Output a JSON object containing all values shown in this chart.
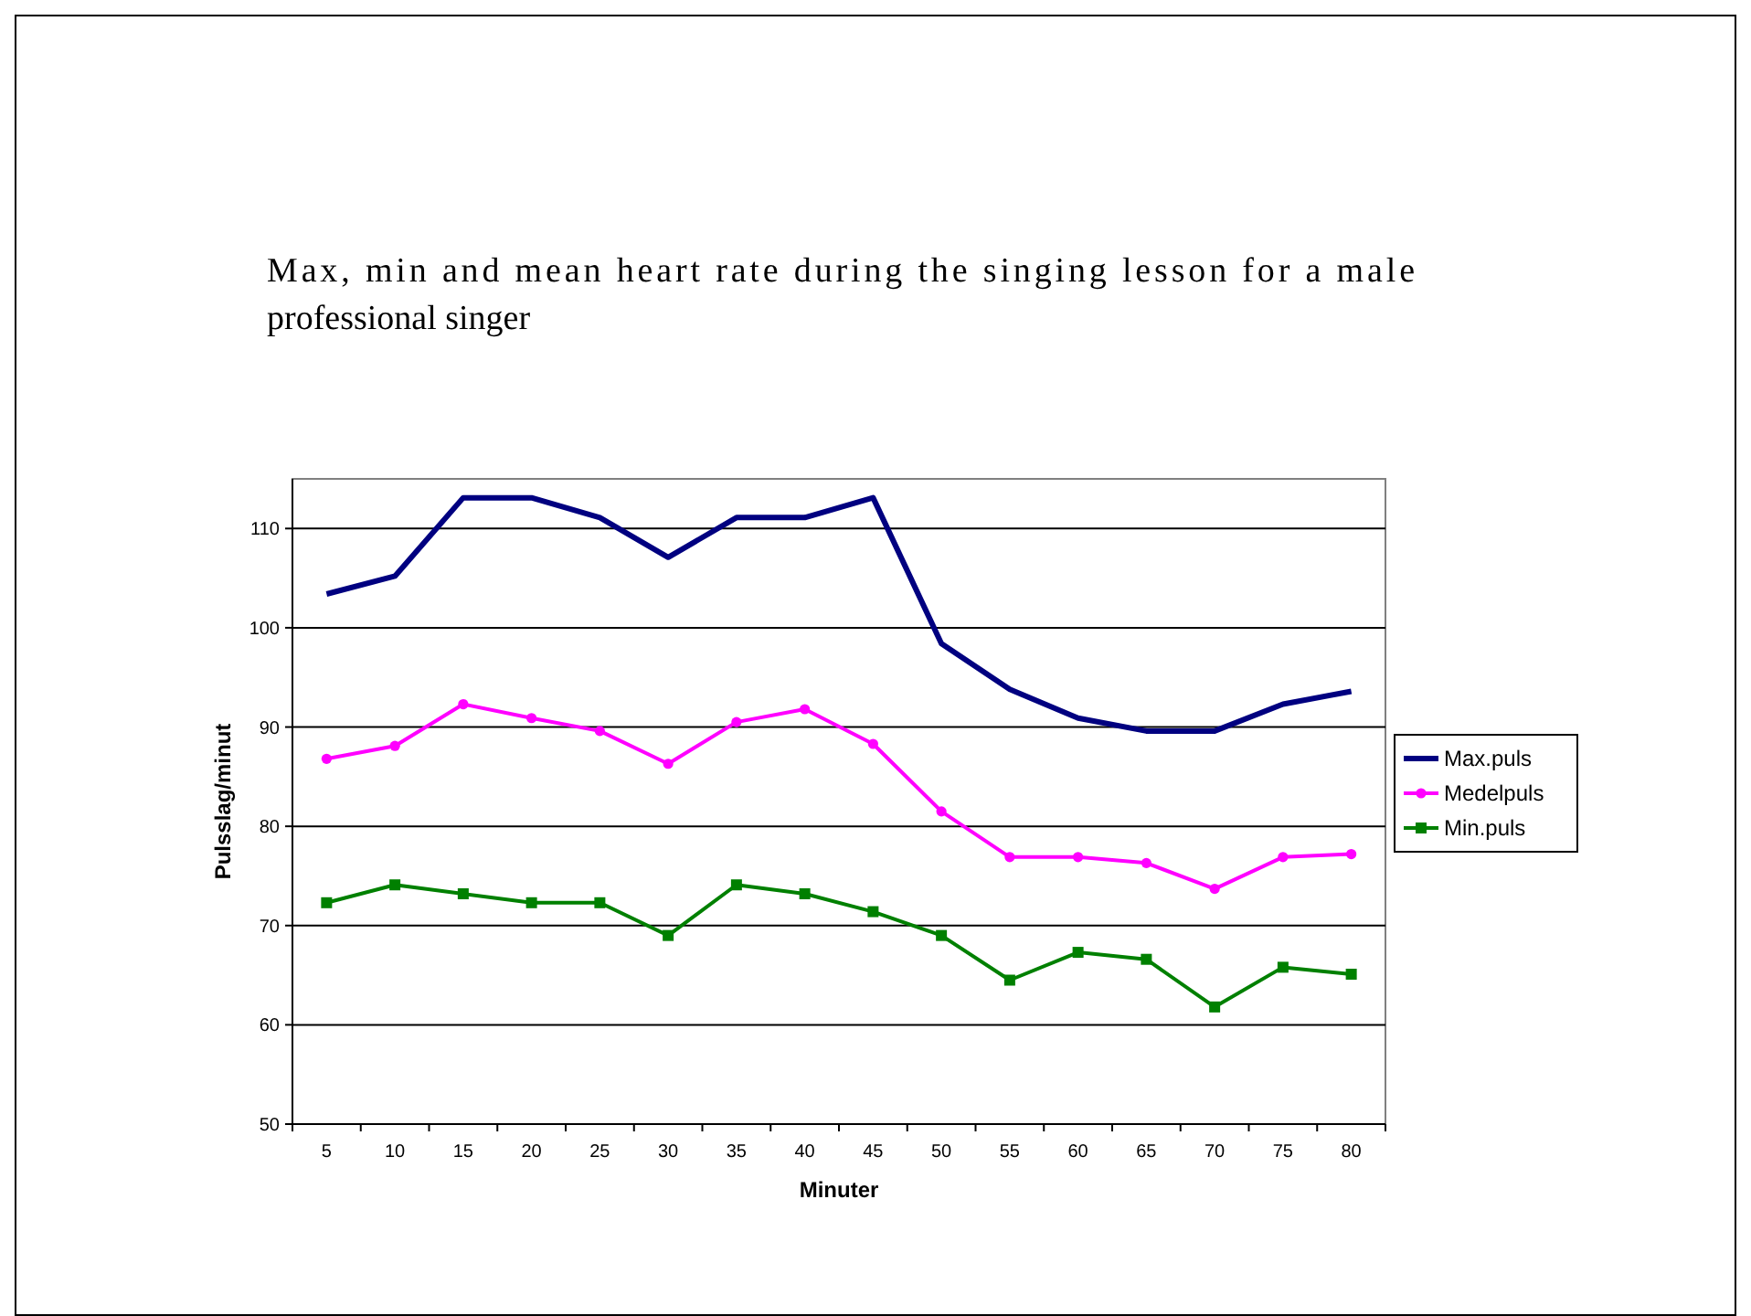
{
  "chart_data": {
    "type": "line",
    "title": "Max, min and mean heart rate during the singing lesson for a male professional singer",
    "xlabel": "Minuter",
    "ylabel": "Pulsslag/minut",
    "categories": [
      "5",
      "10",
      "15",
      "20",
      "25",
      "30",
      "35",
      "40",
      "45",
      "50",
      "55",
      "60",
      "65",
      "70",
      "75",
      "80"
    ],
    "series": [
      {
        "name": "Max.puls",
        "color": "#000080",
        "marker": "none",
        "values": [
          103.4,
          105.2,
          113.1,
          113.1,
          111.1,
          107.1,
          111.1,
          111.1,
          113.1,
          98.4,
          93.8,
          90.9,
          89.6,
          89.6,
          92.3,
          93.6
        ]
      },
      {
        "name": "Medelpuls",
        "color": "#ff00ff",
        "marker": "circle",
        "values": [
          86.8,
          88.1,
          92.3,
          90.9,
          89.6,
          86.3,
          90.5,
          91.8,
          88.3,
          81.5,
          76.9,
          76.9,
          76.3,
          73.7,
          76.9,
          77.2
        ]
      },
      {
        "name": "Min.puls",
        "color": "#008000",
        "marker": "square",
        "values": [
          72.3,
          74.1,
          73.2,
          72.3,
          72.3,
          69.0,
          74.1,
          73.2,
          71.4,
          69.0,
          64.5,
          67.3,
          66.6,
          61.8,
          65.8,
          65.1
        ]
      }
    ],
    "ylim": [
      50,
      115
    ],
    "yticks": [
      50,
      60,
      70,
      80,
      90,
      100,
      110
    ],
    "grid": "y",
    "legend": "right"
  }
}
